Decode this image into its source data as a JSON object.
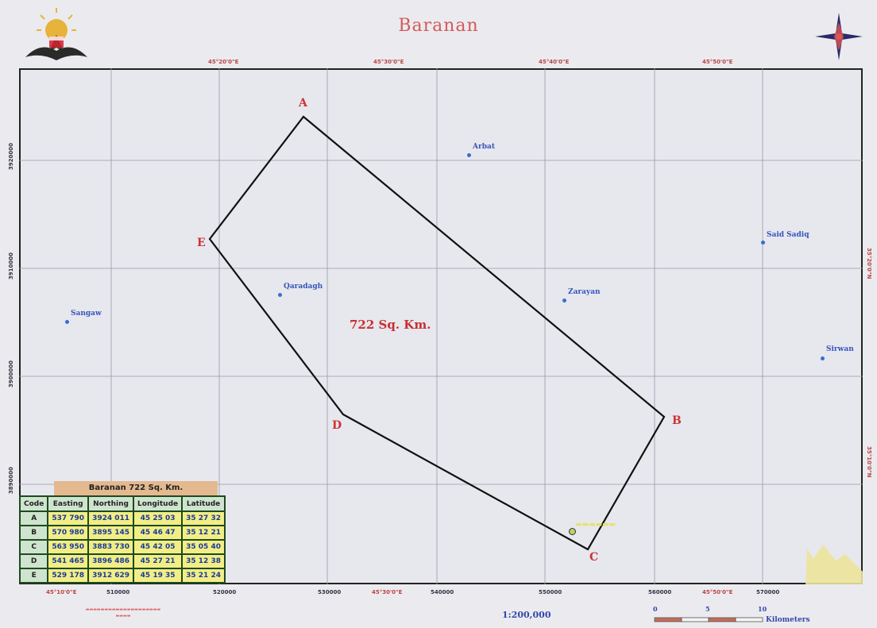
{
  "map_title": "Baranan",
  "area_label": "722 Sq. Km.",
  "vertices": [
    {
      "label": "A"
    },
    {
      "label": "B"
    },
    {
      "label": "C"
    },
    {
      "label": "D"
    },
    {
      "label": "E"
    }
  ],
  "towns": [
    "Arbat",
    "Said Sadiq",
    "Qaradagh",
    "Zarayan",
    "Sangaw",
    "Sirwan"
  ],
  "table": {
    "title": "Baranan 722 Sq. Km.",
    "headers": [
      "Code",
      "Easting",
      "Northing",
      "Longitude",
      "Latitude"
    ],
    "rows": [
      [
        "A",
        "537 790",
        "3924 011",
        "45 25 03",
        "35 27 32"
      ],
      [
        "B",
        "570 980",
        "3895 145",
        "45 46 47",
        "35 12 21"
      ],
      [
        "C",
        "563 950",
        "3883 730",
        "45 42 05",
        "35 05 40"
      ],
      [
        "D",
        "541 465",
        "3896 486",
        "45 27 21",
        "35 12 38"
      ],
      [
        "E",
        "529 178",
        "3912 629",
        "45 19 35",
        "35 21 24"
      ]
    ]
  },
  "scale": "1:200,000",
  "scalebar": {
    "ticks": [
      "0",
      "5",
      "10"
    ],
    "unit": "Kilometers"
  },
  "icons": [
    "kurdistan-emblem-icon",
    "north-arrow-compass-icon",
    "point-marker-icon"
  ],
  "colors": {
    "boundary": "#111111",
    "vertex_label": "#cc3333",
    "town": "#3b6bd6",
    "title": "#d55a5a",
    "table_cell": "#f2ee86",
    "table_header": "#cfe4cf"
  }
}
